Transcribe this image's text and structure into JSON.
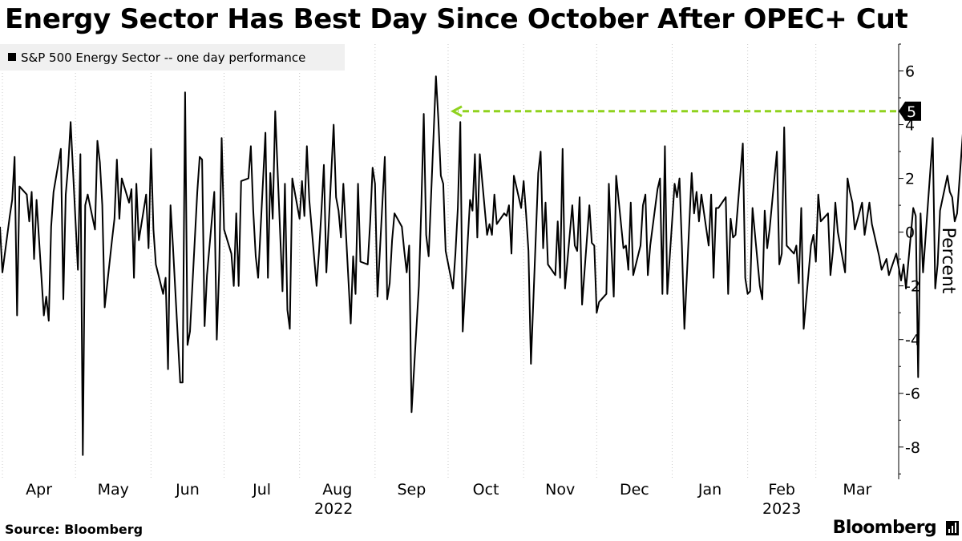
{
  "title": "Energy Sector Has Best Day Since October After OPEC+ Cut",
  "source": "Source: Bloomberg",
  "brand": "Bloomberg",
  "brand_icon": "bloomberg-terminal-icon",
  "colors": {
    "line": "#000000",
    "arrow": "#8fd21e",
    "grid": "#c8c8c8",
    "legend_bg": "#f0f0f0"
  },
  "chart_data": {
    "type": "line",
    "legend": "S&P 500 Energy Sector -- one day performance",
    "legend_position": "top-left",
    "ylabel": "Percent",
    "ylim": [
      -9.2,
      7
    ],
    "yticks": [
      6,
      4,
      2,
      0,
      -2,
      -4,
      -6,
      -8
    ],
    "grid": "vertical dotted",
    "x_range": [
      "2022-03-31",
      "2023-04-04"
    ],
    "month_ticks": [
      {
        "label": "Apr",
        "date": "2022-04-01"
      },
      {
        "label": "May",
        "date": "2022-05-01"
      },
      {
        "label": "Jun",
        "date": "2022-06-01"
      },
      {
        "label": "Jul",
        "date": "2022-07-01"
      },
      {
        "label": "Aug",
        "date": "2022-08-01"
      },
      {
        "label": "Sep",
        "date": "2022-09-01"
      },
      {
        "label": "Oct",
        "date": "2022-10-01"
      },
      {
        "label": "Nov",
        "date": "2022-11-01"
      },
      {
        "label": "Dec",
        "date": "2022-12-01"
      },
      {
        "label": "Jan",
        "date": "2023-01-01"
      },
      {
        "label": "Feb",
        "date": "2023-02-01"
      },
      {
        "label": "Mar",
        "date": "2023-03-01"
      }
    ],
    "year_labels": [
      {
        "label": "2022",
        "date": "2022-08-15"
      },
      {
        "label": "2023",
        "date": "2023-02-15"
      }
    ],
    "last_value_label": "5",
    "annotation": {
      "type": "dashed-arrow",
      "from_date": "2023-04-03",
      "to_date": "2022-10-03",
      "value": 4.5
    },
    "series": [
      {
        "start_date": "2022-03-31",
        "values": [
          0.2,
          -1.5,
          0.6,
          1.2,
          2.8,
          -3.1,
          1.7,
          1.4,
          0.4,
          1.5,
          -1.0,
          1.2,
          -3.1,
          -2.4,
          -3.3,
          0.2,
          1.5,
          3.1,
          -2.5,
          1.4,
          2.5,
          4.1,
          -1.4,
          2.9,
          -8.3,
          1.0,
          1.4,
          0.1,
          3.4,
          2.6,
          1.0,
          -2.8,
          -0.3,
          0.5,
          2.7,
          0.5,
          2.0,
          1.1,
          1.6,
          -1.7,
          1.8,
          -0.3,
          1.4,
          -0.6,
          3.1,
          0.1,
          -1.2,
          -2.3,
          -1.7,
          -5.1,
          1.0,
          -0.5,
          -5.6,
          -5.6,
          5.2,
          -4.2,
          -3.7,
          1.5,
          2.8,
          2.7,
          -3.5,
          -1.6,
          1.5,
          -4.0,
          -1.4,
          3.5,
          0.1,
          -0.8,
          -2.0,
          0.7,
          -2.0,
          1.9,
          2.0,
          3.2,
          0.8,
          -0.9,
          -1.7,
          3.7,
          -1.7,
          2.2,
          0.5,
          4.5,
          -2.2,
          1.8,
          -2.9,
          -3.6,
          2.0,
          0.5,
          1.9,
          0.6,
          3.2,
          1.2,
          -2.0,
          -0.7,
          0.8,
          2.5,
          -1.5,
          4.0,
          1.3,
          0.8,
          -0.2,
          1.8,
          -3.4,
          -0.9,
          -2.3,
          1.8,
          -1.1,
          -1.2,
          0.4,
          2.4,
          1.8,
          -2.4,
          2.8,
          -2.5,
          -1.9,
          -0.3,
          0.7,
          0.2,
          -0.7,
          -1.5,
          -0.5,
          -6.7,
          -2.0,
          1.0,
          4.4,
          -0.1,
          -0.9,
          5.8,
          4.2,
          2.1,
          1.8,
          -0.7,
          -2.1,
          -0.8,
          0.9,
          4.1,
          -3.7,
          1.2,
          0.8,
          2.9,
          -0.2,
          2.9,
          -0.1,
          0.3,
          -0.1,
          1.4,
          0.3,
          0.7,
          0.6,
          1.0,
          -0.8,
          2.1,
          0.9,
          1.9,
          0.7,
          -0.7,
          -4.9,
          2.2,
          3.0,
          -0.6,
          1.1,
          -1.2,
          -1.6,
          0.4,
          -1.7,
          3.1,
          -2.1,
          1.0,
          -0.5,
          -0.7,
          1.3,
          -2.7,
          1.0,
          -0.4,
          -0.5,
          -3.0,
          -2.6,
          -2.3,
          1.8,
          -0.5,
          -2.4,
          2.1,
          -0.6,
          -0.5,
          -1.4,
          1.1,
          -1.6,
          -0.5,
          1.0,
          1.4,
          -1.6,
          -0.5,
          1.6,
          2.0,
          -2.3,
          3.2,
          -2.3,
          1.8,
          1.3,
          2.0,
          -0.5,
          -3.6,
          2.2,
          0.7,
          1.5,
          0.4,
          1.4,
          -0.5,
          1.4,
          -1.7,
          0.9,
          0.9,
          1.3,
          -2.3,
          0.5,
          -0.2,
          -0.1,
          3.3,
          -1.7,
          -2.3,
          -2.2,
          0.9,
          -2.0,
          -2.5,
          0.8,
          -0.6,
          0.1,
          3.0,
          -1.2,
          -0.8,
          3.9,
          -0.5,
          -0.8,
          -0.5,
          -1.9,
          0.9,
          -3.6,
          -0.5,
          -0.1,
          -1.1,
          1.4,
          0.4,
          0.7,
          -1.6,
          -0.7,
          1.1,
          0.0,
          -1.5,
          2.0,
          1.5,
          1.1,
          0.1,
          1.1,
          -0.1,
          0.5,
          1.1,
          0.3,
          -0.9,
          -1.4,
          -1.2,
          -1.0,
          -1.6,
          -0.8,
          -1.3,
          -1.8,
          -1.2,
          -2.1,
          0.9,
          0.6,
          -5.4,
          0.7,
          -1.5,
          2.3,
          3.5,
          -2.1,
          -1.2,
          0.8,
          2.1,
          1.5,
          1.3,
          0.4,
          0.7,
          4.5
        ]
      }
    ]
  }
}
